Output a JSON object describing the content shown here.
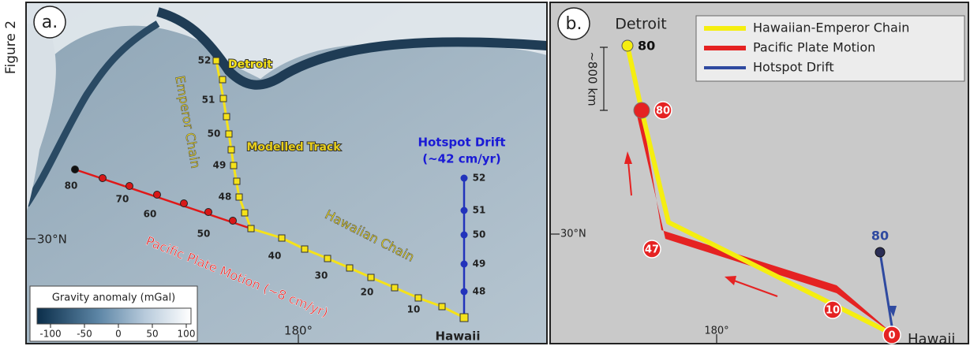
{
  "figure_label": "Figure 2",
  "panel_a": {
    "label": "a.",
    "detroit": "Detroit",
    "emperor_chain": "Emperor Chain",
    "modelled_track": "Modelled Track",
    "hotspot_drift": "Hotspot Drift",
    "hotspot_rate": "(~42 cm/yr)",
    "hawaiian_chain": "Hawaiian Chain",
    "pacific_plate_motion": "Pacific Plate Motion (~8 cm/yr)",
    "hawaii": "Hawaii",
    "lat": "30°N",
    "lon": "180°",
    "emperor_ages": [
      52,
      51,
      50,
      49,
      48
    ],
    "hotspot_ages": [
      52,
      51,
      50,
      49,
      48
    ],
    "pacific_ages": [
      80,
      70,
      60,
      50,
      40,
      30,
      20,
      10
    ],
    "colorbar": {
      "title": "Gravity anomaly (mGal)",
      "ticks": [
        -100,
        -50,
        0,
        50,
        100
      ]
    }
  },
  "panel_b": {
    "label": "b.",
    "detroit": "Detroit",
    "detroit_age": 80,
    "scale": "~800 km",
    "pacific_ages": [
      80,
      47,
      10,
      0
    ],
    "hotspot_age": 80,
    "hawaii": "Hawaii",
    "lat": "30°N",
    "lon": "180°",
    "legend": [
      "Hawaiian-Emperor Chain",
      "Pacific Plate Motion",
      "Hotspot Drift"
    ]
  }
}
